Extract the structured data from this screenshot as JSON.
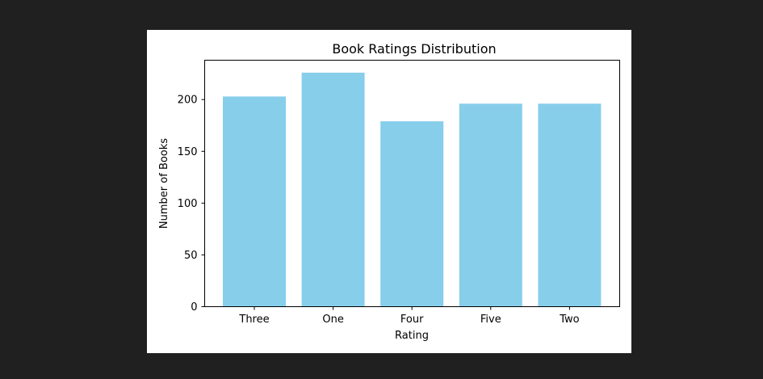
{
  "chart_data": {
    "type": "bar",
    "title": "Book Ratings Distribution",
    "xlabel": "Rating",
    "ylabel": "Number of Books",
    "categories": [
      "Three",
      "One",
      "Four",
      "Five",
      "Two"
    ],
    "values": [
      203,
      226,
      179,
      196,
      196
    ],
    "ylim": [
      0,
      238
    ],
    "yticks": [
      0,
      50,
      100,
      150,
      200
    ],
    "bar_color": "#87CEEB",
    "grid": false,
    "legend": "none"
  }
}
